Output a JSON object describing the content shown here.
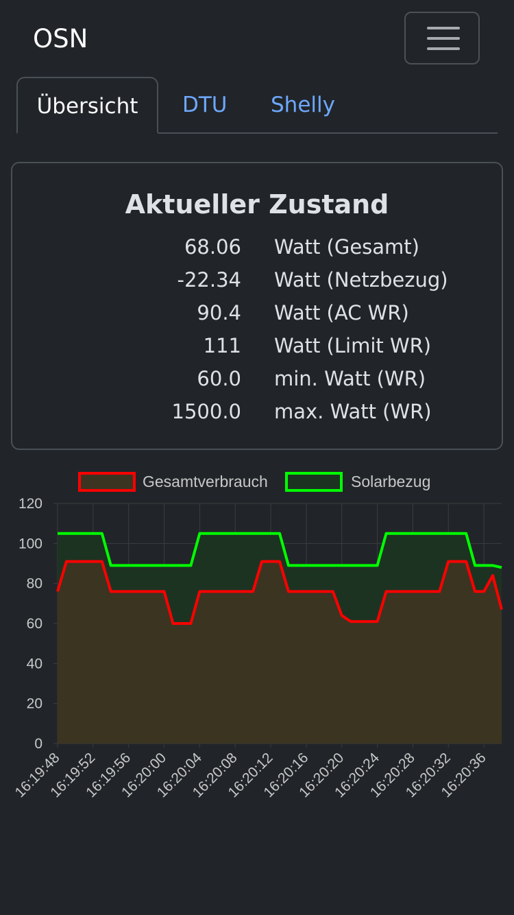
{
  "navbar": {
    "brand": "OSN",
    "toggler_icon": "hamburger-icon"
  },
  "tabs": [
    {
      "label": "Übersicht",
      "active": true
    },
    {
      "label": "DTU",
      "active": false
    },
    {
      "label": "Shelly",
      "active": false
    }
  ],
  "status": {
    "title": "Aktueller Zustand",
    "rows": [
      {
        "value": "68.06",
        "label": "Watt (Gesamt)"
      },
      {
        "value": "-22.34",
        "label": "Watt (Netzbezug)"
      },
      {
        "value": "90.4",
        "label": "Watt (AC WR)"
      },
      {
        "value": "111",
        "label": "Watt (Limit WR)"
      },
      {
        "value": "60.0",
        "label": "min. Watt (WR)"
      },
      {
        "value": "1500.0",
        "label": "max. Watt (WR)"
      }
    ]
  },
  "chart_data": {
    "type": "line",
    "ylim": [
      0,
      120
    ],
    "yticks": [
      "0",
      "20",
      "40",
      "60",
      "80",
      "100",
      "120"
    ],
    "xticks": [
      "16:19:48",
      "16:19:52",
      "16:19:56",
      "16:20:00",
      "16:20:04",
      "16:20:08",
      "16:20:12",
      "16:20:16",
      "16:20:20",
      "16:20:24",
      "16:20:28",
      "16:20:32",
      "16:20:36"
    ],
    "legend_position": "top",
    "grid": true,
    "series": [
      {
        "name": "Gesamtverbrauch",
        "color": "#ff0000",
        "fill": "#3b3421",
        "points": [
          [
            0,
            76
          ],
          [
            1,
            91
          ],
          [
            5,
            91
          ],
          [
            6,
            76
          ],
          [
            12,
            76
          ],
          [
            13,
            60
          ],
          [
            15,
            60
          ],
          [
            16,
            76
          ],
          [
            22,
            76
          ],
          [
            23,
            91
          ],
          [
            25,
            91
          ],
          [
            26,
            76
          ],
          [
            31,
            76
          ],
          [
            32,
            64
          ],
          [
            33,
            61
          ],
          [
            36,
            61
          ],
          [
            37,
            76
          ],
          [
            43,
            76
          ],
          [
            44,
            91
          ],
          [
            46,
            91
          ],
          [
            47,
            76
          ],
          [
            48,
            76
          ],
          [
            49,
            84
          ],
          [
            50,
            67
          ]
        ]
      },
      {
        "name": "Solarbezug",
        "color": "#00ff00",
        "fill": "#1d3322",
        "points": [
          [
            0,
            105
          ],
          [
            5,
            105
          ],
          [
            6,
            89
          ],
          [
            15,
            89
          ],
          [
            16,
            105
          ],
          [
            25,
            105
          ],
          [
            26,
            89
          ],
          [
            36,
            89
          ],
          [
            37,
            105
          ],
          [
            46,
            105
          ],
          [
            47,
            89
          ],
          [
            49,
            89
          ],
          [
            50,
            88
          ]
        ]
      }
    ]
  }
}
